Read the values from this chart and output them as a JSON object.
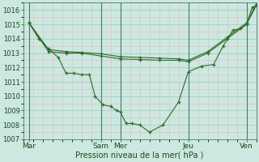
{
  "background_color": "#cce8e0",
  "grid_major_color": "#aacfc8",
  "grid_minor_color": "#e8b8b8",
  "line_color": "#2d6b2d",
  "xlim": [
    0,
    12
  ],
  "ylim": [
    1007,
    1016.5
  ],
  "yticks": [
    1007,
    1008,
    1009,
    1010,
    1011,
    1012,
    1013,
    1014,
    1015,
    1016
  ],
  "ytick_fontsize": 6,
  "x_tick_positions": [
    0.3,
    4.0,
    5.0,
    8.5,
    11.5
  ],
  "x_tick_labels": [
    "Mar",
    "Sam",
    "Mer",
    "Jeu",
    "Ven"
  ],
  "xtick_fontsize": 6.5,
  "vline_positions": [
    0.3,
    4.0,
    5.0,
    8.5,
    11.5
  ],
  "xlabel": "Pression niveau de la mer( hPa )",
  "xlabel_fontsize": 7,
  "series1_x": [
    0.3,
    0.8,
    1.3,
    1.8,
    2.2,
    2.6,
    3.0,
    3.4,
    3.7,
    4.1,
    4.5,
    4.8,
    5.0,
    5.3,
    5.6,
    6.0,
    6.5,
    7.2,
    8.0,
    8.5,
    9.2,
    9.8,
    10.3,
    10.8,
    11.2,
    11.5,
    11.8,
    12.0
  ],
  "series1_y": [
    1015.1,
    1014.0,
    1013.3,
    1012.7,
    1011.6,
    1011.6,
    1011.5,
    1011.5,
    1010.0,
    1009.4,
    1009.3,
    1009.0,
    1008.9,
    1008.1,
    1008.1,
    1008.0,
    1007.5,
    1008.0,
    1009.6,
    1011.7,
    1012.1,
    1012.2,
    1013.5,
    1014.6,
    1014.7,
    1015.0,
    1016.2,
    1016.3
  ],
  "series2_x": [
    0.3,
    1.3,
    2.2,
    3.0,
    4.0,
    5.0,
    6.0,
    7.0,
    8.0,
    8.5,
    9.5,
    10.5,
    11.5,
    12.0
  ],
  "series2_y": [
    1015.1,
    1013.1,
    1013.0,
    1013.0,
    1012.8,
    1012.6,
    1012.55,
    1012.5,
    1012.5,
    1012.4,
    1013.0,
    1014.0,
    1015.0,
    1016.3
  ],
  "series3_x": [
    0.3,
    1.3,
    2.2,
    3.0,
    4.0,
    5.0,
    6.0,
    7.0,
    8.0,
    8.5,
    9.5,
    10.5,
    11.5,
    12.0
  ],
  "series3_y": [
    1015.1,
    1013.25,
    1013.1,
    1013.05,
    1012.95,
    1012.75,
    1012.7,
    1012.65,
    1012.6,
    1012.5,
    1013.1,
    1014.1,
    1015.1,
    1016.4
  ]
}
